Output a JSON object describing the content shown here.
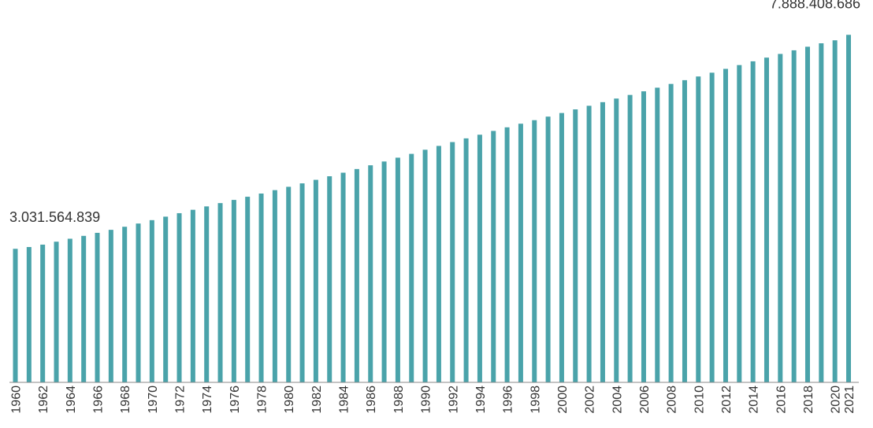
{
  "chart_data": {
    "type": "bar",
    "title": "",
    "xlabel": "",
    "ylabel": "",
    "bar_color": "#4aa3aa",
    "ylim": [
      0,
      8500000000
    ],
    "categories": [
      "1960",
      "1961",
      "1962",
      "1963",
      "1964",
      "1965",
      "1966",
      "1967",
      "1968",
      "1969",
      "1970",
      "1971",
      "1972",
      "1973",
      "1974",
      "1975",
      "1976",
      "1977",
      "1978",
      "1979",
      "1980",
      "1981",
      "1982",
      "1983",
      "1984",
      "1985",
      "1986",
      "1987",
      "1988",
      "1989",
      "1990",
      "1991",
      "1992",
      "1993",
      "1994",
      "1995",
      "1996",
      "1997",
      "1998",
      "1999",
      "2000",
      "2001",
      "2002",
      "2003",
      "2004",
      "2005",
      "2006",
      "2007",
      "2008",
      "2009",
      "2010",
      "2011",
      "2012",
      "2013",
      "2014",
      "2015",
      "2016",
      "2017",
      "2018",
      "2019",
      "2020",
      "2021"
    ],
    "tick_labels": [
      "1960",
      "1962",
      "1964",
      "1966",
      "1968",
      "1970",
      "1972",
      "1974",
      "1976",
      "1978",
      "1980",
      "1982",
      "1984",
      "1986",
      "1988",
      "1990",
      "1992",
      "1994",
      "1996",
      "1998",
      "2000",
      "2002",
      "2004",
      "2006",
      "2008",
      "2010",
      "2012",
      "2014",
      "2016",
      "2018",
      "2020",
      "2021"
    ],
    "values": [
      3031564839,
      3072000000,
      3126000000,
      3193000000,
      3260000000,
      3325000000,
      3394000000,
      3462000000,
      3532000000,
      3605000000,
      3682000000,
      3761000000,
      3840000000,
      3917000000,
      3994000000,
      4069000000,
      4141000000,
      4213000000,
      4286000000,
      4363000000,
      4439000000,
      4517000000,
      4597000000,
      4678000000,
      4759000000,
      4842000000,
      4927000000,
      5013000000,
      5100000000,
      5186000000,
      5280000000,
      5367000000,
      5454000000,
      5538000000,
      5621000000,
      5707000000,
      5789000000,
      5871000000,
      5951000000,
      6032000000,
      6114000000,
      6196000000,
      6278000000,
      6360000000,
      6442000000,
      6524000000,
      6606000000,
      6689000000,
      6774000000,
      6859000000,
      6943000000,
      7029000000,
      7116000000,
      7202000000,
      7287000000,
      7371000000,
      7455000000,
      7537000000,
      7618000000,
      7696000000,
      7764000000,
      7888408686
    ],
    "data_labels": [
      {
        "index": 0,
        "text": "3.031.564.839"
      },
      {
        "index": 61,
        "text": "7.888.408.686"
      }
    ]
  }
}
